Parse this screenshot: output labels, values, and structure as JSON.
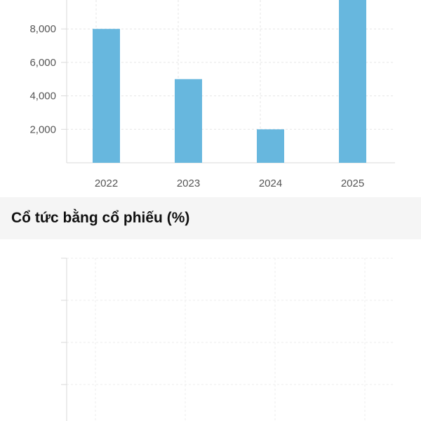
{
  "chart_data": [
    {
      "type": "bar",
      "categories": [
        "2022",
        "2023",
        "2024",
        "2025"
      ],
      "values": [
        8000,
        5000,
        2000,
        10000
      ],
      "yticks": [
        "2,000",
        "4,000",
        "6,000",
        "8,000"
      ],
      "ylim": [
        0,
        10000
      ],
      "grid": true,
      "colors": {
        "bar": "#67b7de",
        "grid": "#e6e6e6",
        "axis": "#d9d9d9"
      }
    },
    {
      "type": "bar",
      "title": "Cổ tức bằng cổ phiếu (%)",
      "categories": [],
      "values": [],
      "grid": true
    }
  ]
}
